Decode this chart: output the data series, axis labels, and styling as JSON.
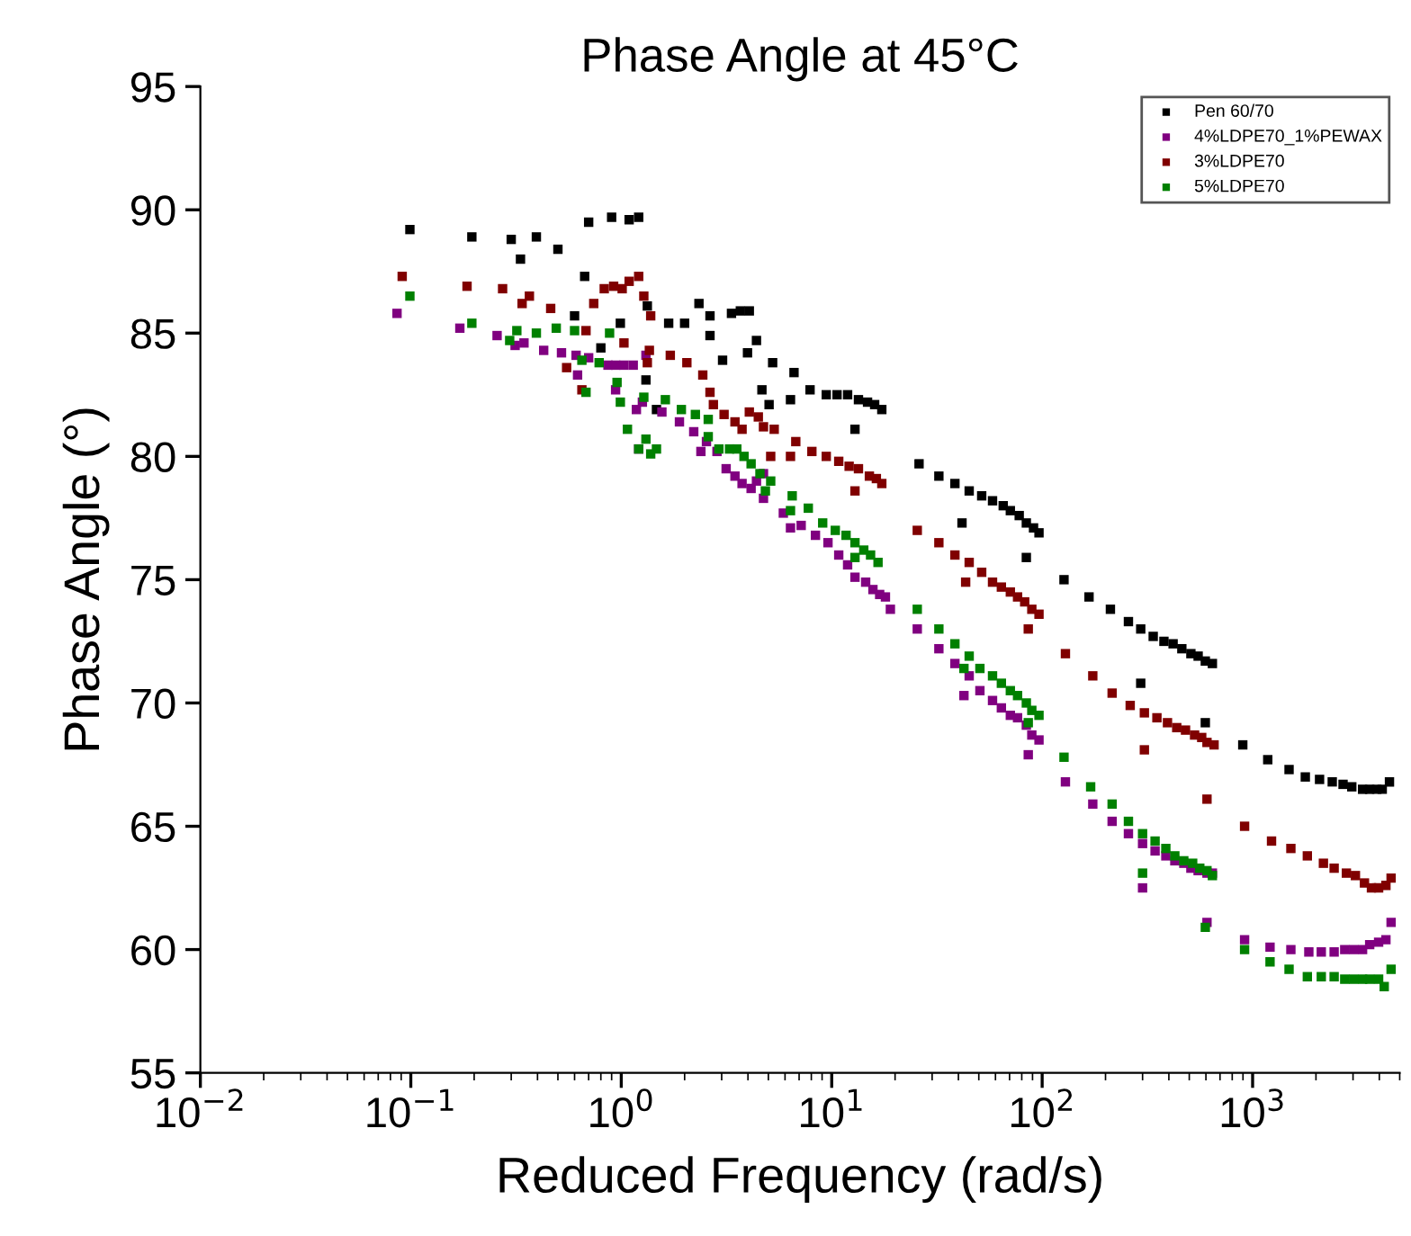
{
  "chart_data": {
    "type": "scatter",
    "title": "Phase Angle at 45°C",
    "xlabel": "Reduced Frequency (rad/s)",
    "ylabel": "Phase Angle (°)",
    "log": "x",
    "xlim": [
      0.01,
      5000
    ],
    "ylim": [
      55,
      95
    ],
    "xticks": [
      {
        "value": 0.01,
        "label": "10$^{−2}$"
      },
      {
        "value": 0.1,
        "label": "10$^{−1}$"
      },
      {
        "value": 1,
        "label": "10$^{0}$"
      },
      {
        "value": 10,
        "label": "10$^{1}$"
      },
      {
        "value": 100,
        "label": "10$^{2}$"
      },
      {
        "value": 1000,
        "label": "10$^{3}$"
      }
    ],
    "yticks": [
      55,
      60,
      65,
      70,
      75,
      80,
      85,
      90,
      95
    ],
    "grid": false,
    "legend": "top right",
    "marker": "square",
    "series": [
      {
        "name": "Pen 60/70",
        "color": "#000000",
        "x": [
          0.099,
          0.195,
          0.3,
          0.395,
          0.332,
          0.5,
          0.7,
          0.9,
          1.09,
          1.21,
          0.67,
          0.6,
          0.99,
          0.8,
          1.31,
          1.33,
          1.47,
          1.68,
          2.0,
          2.34,
          2.64,
          2.64,
          3.03,
          3.34,
          3.68,
          4.06,
          4.39,
          3.98,
          5.24,
          6.62,
          4.66,
          5.04,
          6.37,
          7.89,
          9.42,
          10.6,
          11.9,
          13.4,
          14.8,
          16.0,
          17.3,
          12.9,
          26.0,
          32.3,
          38.5,
          45.0,
          51.6,
          58.1,
          65.3,
          70.6,
          77.8,
          84.1,
          91.0,
          96.6,
          41.6,
          84.1,
          127,
          167,
          211,
          257,
          294,
          337,
          379,
          419,
          461,
          509,
          551,
          596,
          644,
          294,
          596,
          898,
          1180,
          1490,
          1780,
          2080,
          2390,
          2690,
          2960,
          3330,
          3600,
          3890,
          4130,
          4470
        ],
        "values": [
          89.2,
          88.9,
          88.8,
          88.9,
          88.0,
          88.4,
          89.5,
          89.7,
          89.6,
          89.7,
          87.3,
          85.7,
          85.4,
          84.4,
          83.1,
          86.1,
          81.9,
          85.4,
          85.4,
          86.2,
          85.7,
          84.9,
          83.9,
          85.8,
          85.9,
          85.9,
          84.7,
          84.2,
          83.8,
          83.4,
          82.7,
          82.1,
          82.3,
          82.7,
          82.5,
          82.5,
          82.5,
          82.3,
          82.2,
          82.1,
          81.9,
          81.1,
          79.7,
          79.2,
          78.9,
          78.6,
          78.4,
          78.2,
          78.0,
          77.8,
          77.6,
          77.3,
          77.1,
          76.9,
          77.3,
          75.9,
          75.0,
          74.3,
          73.8,
          73.3,
          73.0,
          72.7,
          72.5,
          72.4,
          72.2,
          72.0,
          71.9,
          71.7,
          71.6,
          70.8,
          69.2,
          68.3,
          67.7,
          67.3,
          67.0,
          66.9,
          66.8,
          66.7,
          66.6,
          66.5,
          66.5,
          66.5,
          66.5,
          66.8
        ]
      },
      {
        "name": "4%LDPE70_1%PEWAX",
        "color": "#800080",
        "x": [
          0.086,
          0.171,
          0.257,
          0.313,
          0.345,
          0.428,
          0.52,
          0.61,
          0.7,
          0.62,
          0.865,
          0.94,
          1.03,
          1.14,
          1.31,
          0.94,
          1.26,
          1.18,
          1.56,
          1.89,
          2.21,
          2.54,
          2.39,
          1.21,
          2.85,
          3.15,
          3.47,
          3.75,
          4.14,
          4.39,
          4.74,
          4.74,
          5.89,
          6.37,
          7.16,
          8.37,
          9.6,
          10.8,
          11.9,
          12.9,
          14.5,
          15.7,
          16.9,
          18.0,
          19.0,
          25.5,
          32.3,
          38.5,
          45.0,
          42.5,
          50.6,
          58.1,
          64.0,
          70.6,
          76.4,
          84.1,
          89.3,
          96.6,
          85.9,
          129,
          174,
          215,
          257,
          300,
          344,
          387,
          427,
          471,
          509,
          551,
          607,
          644,
          300,
          607,
          916,
          1210,
          1520,
          1850,
          2120,
          2440,
          2740,
          3020,
          3330,
          3600,
          3970,
          4300,
          4550
        ],
        "values": [
          85.8,
          85.2,
          84.9,
          84.5,
          84.6,
          84.3,
          84.2,
          84.1,
          84.0,
          83.3,
          83.7,
          83.7,
          83.7,
          83.7,
          84.1,
          82.7,
          82.2,
          81.9,
          81.8,
          81.4,
          81.0,
          80.6,
          80.2,
          80.3,
          80.2,
          79.5,
          79.2,
          78.9,
          78.7,
          79.0,
          79.3,
          78.3,
          77.7,
          77.1,
          77.2,
          76.8,
          76.5,
          76.0,
          75.6,
          75.1,
          74.9,
          74.6,
          74.4,
          74.3,
          73.8,
          73.0,
          72.2,
          71.6,
          71.1,
          70.3,
          70.5,
          70.1,
          69.8,
          69.5,
          69.4,
          69.1,
          68.7,
          68.5,
          67.9,
          66.8,
          65.9,
          65.2,
          64.7,
          64.3,
          64.0,
          63.8,
          63.6,
          63.5,
          63.3,
          63.2,
          63.1,
          63.1,
          62.5,
          61.1,
          60.4,
          60.1,
          60.0,
          59.9,
          59.9,
          59.9,
          60.0,
          60.0,
          60.0,
          60.2,
          60.3,
          60.4,
          61.1
        ]
      },
      {
        "name": "3%LDPE70",
        "color": "#800000",
        "x": [
          0.091,
          0.185,
          0.273,
          0.366,
          0.338,
          0.462,
          0.74,
          0.83,
          0.92,
          1.01,
          1.09,
          1.21,
          1.28,
          0.68,
          0.55,
          0.65,
          1.03,
          1.38,
          1.36,
          1.33,
          1.71,
          2.05,
          2.44,
          2.64,
          2.74,
          3.08,
          3.47,
          3.75,
          4.06,
          4.48,
          4.74,
          5.33,
          6.75,
          8.05,
          9.42,
          10.8,
          12.1,
          13.4,
          15.1,
          16.3,
          17.3,
          5.13,
          6.37,
          12.9,
          25.5,
          32.3,
          38.5,
          45.0,
          51.6,
          58.1,
          64.0,
          70.6,
          76.4,
          82.6,
          89.3,
          96.6,
          43.3,
          85.9,
          129,
          174,
          215,
          262,
          306,
          351,
          394,
          436,
          480,
          530,
          573,
          607,
          656,
          306,
          607,
          916,
          1230,
          1520,
          1820,
          2170,
          2440,
          2790,
          3080,
          3400,
          3670,
          3970,
          4300,
          4550
        ],
        "values": [
          87.3,
          86.9,
          86.8,
          86.5,
          86.2,
          86.0,
          86.2,
          86.8,
          86.9,
          86.8,
          87.1,
          87.3,
          86.5,
          85.1,
          83.6,
          82.7,
          84.6,
          85.7,
          84.3,
          83.8,
          84.1,
          83.8,
          83.3,
          82.6,
          82.1,
          81.7,
          81.4,
          81.1,
          81.8,
          81.6,
          81.2,
          81.1,
          80.6,
          80.2,
          80.0,
          79.8,
          79.6,
          79.5,
          79.2,
          79.1,
          78.9,
          80.0,
          80.0,
          78.6,
          77.0,
          76.5,
          76.0,
          75.7,
          75.3,
          74.9,
          74.7,
          74.5,
          74.3,
          74.1,
          73.8,
          73.6,
          74.9,
          73.0,
          72.0,
          71.1,
          70.4,
          69.9,
          69.6,
          69.4,
          69.2,
          69.0,
          68.9,
          68.7,
          68.6,
          68.4,
          68.3,
          68.1,
          66.1,
          65.0,
          64.4,
          64.1,
          63.8,
          63.5,
          63.3,
          63.1,
          63.0,
          62.7,
          62.5,
          62.5,
          62.6,
          62.9
        ]
      },
      {
        "name": "5%LDPE70",
        "color": "#008000",
        "x": [
          0.099,
          0.195,
          0.319,
          0.295,
          0.395,
          0.491,
          0.6,
          0.65,
          0.785,
          0.88,
          0.955,
          0.68,
          0.99,
          1.07,
          1.28,
          1.31,
          1.21,
          1.38,
          1.47,
          1.62,
          1.93,
          2.25,
          2.59,
          2.59,
          2.91,
          3.27,
          3.54,
          3.83,
          4.14,
          4.56,
          5.13,
          4.84,
          6.49,
          6.37,
          7.74,
          9.06,
          10.4,
          11.7,
          12.9,
          14.2,
          15.3,
          16.6,
          12.9,
          25.5,
          32.3,
          38.5,
          45.0,
          50.6,
          58.1,
          64.0,
          70.6,
          76.4,
          84.1,
          89.3,
          96.6,
          85.9,
          42.5,
          127,
          170,
          215,
          257,
          300,
          344,
          387,
          427,
          471,
          519,
          561,
          607,
          644,
          300,
          596,
          916,
          1210,
          1490,
          1820,
          2120,
          2440,
          2740,
          3020,
          3330,
          3600,
          3970,
          4220,
          4550
        ],
        "values": [
          86.5,
          85.4,
          85.1,
          84.7,
          85.0,
          85.2,
          85.1,
          83.9,
          83.8,
          85.0,
          83.0,
          82.6,
          82.2,
          81.1,
          82.4,
          80.7,
          80.3,
          80.1,
          80.3,
          82.3,
          81.9,
          81.7,
          81.5,
          80.8,
          80.3,
          80.3,
          80.3,
          80.0,
          79.7,
          79.3,
          79.0,
          78.6,
          78.4,
          77.8,
          77.9,
          77.3,
          77.0,
          76.8,
          76.5,
          76.2,
          76.0,
          75.7,
          75.9,
          73.8,
          73.0,
          72.4,
          71.9,
          71.4,
          71.1,
          70.8,
          70.5,
          70.3,
          70.0,
          69.7,
          69.5,
          69.2,
          71.4,
          67.8,
          66.6,
          65.9,
          65.2,
          64.7,
          64.4,
          64.1,
          63.8,
          63.6,
          63.5,
          63.3,
          63.2,
          63.0,
          63.1,
          60.9,
          60.0,
          59.5,
          59.2,
          58.9,
          58.9,
          58.9,
          58.8,
          58.8,
          58.8,
          58.8,
          58.8,
          58.5,
          59.2
        ]
      }
    ]
  }
}
